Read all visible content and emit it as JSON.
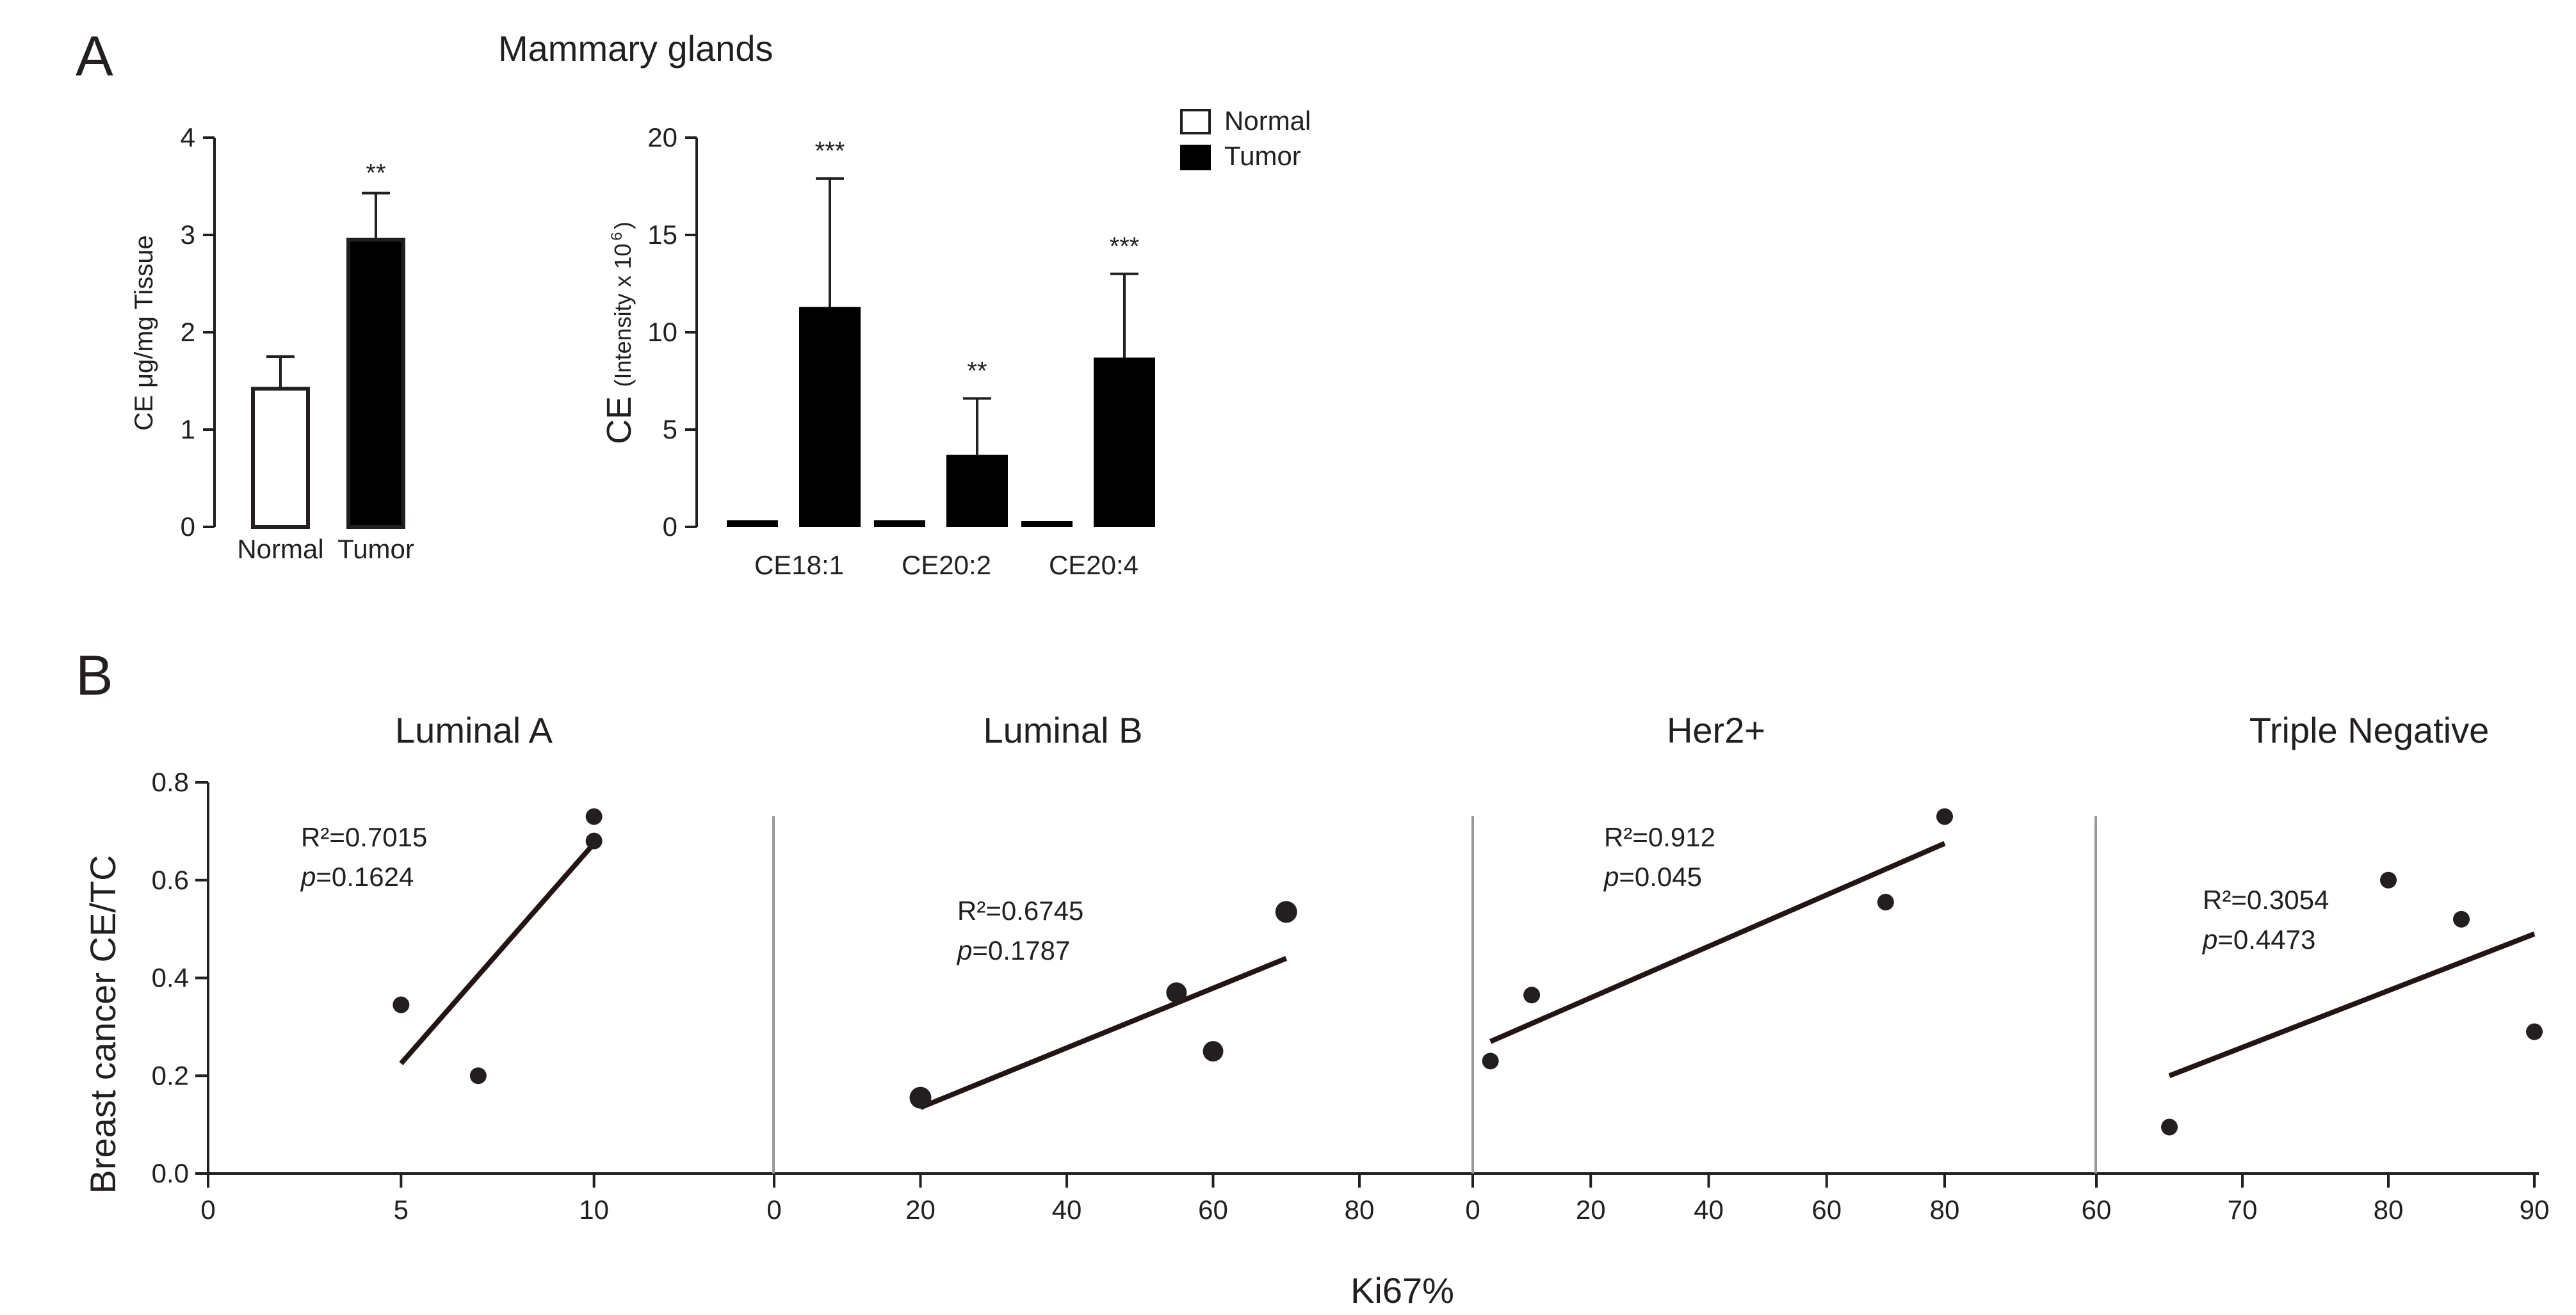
{
  "figure": {
    "panel_a_letter": "A",
    "panel_b_letter": "B",
    "panel_a_title": "Mammary glands",
    "panel_b_xlabel": "Ki67%",
    "panel_b_ylabel": "Breast cancer CE/TC"
  },
  "colors": {
    "ink": "#231f20",
    "tumor": "#000000",
    "normal": "#ffffff",
    "divider": "#999999"
  },
  "chart_data": [
    {
      "id": "a1",
      "type": "bar",
      "title": "",
      "xlabel": "",
      "ylabel": "CE μg/mg Tissue",
      "ylim": [
        0,
        4
      ],
      "yticks": [
        "0",
        "1",
        "2",
        "3",
        "4"
      ],
      "categories": [
        "Normal",
        "Tumor"
      ],
      "values": [
        1.42,
        2.95
      ],
      "errors": [
        0.33,
        0.48
      ],
      "significance": [
        "",
        "**"
      ],
      "grid": false
    },
    {
      "id": "a2",
      "type": "bar",
      "title": "",
      "xlabel": "",
      "ylabel_main": "CE",
      "ylabel_sub": "(Intensity x 10",
      "ylabel_sup": "6",
      "ylabel_close": ")",
      "ylim": [
        0,
        20
      ],
      "yticks": [
        "0",
        "5",
        "10",
        "15",
        "20"
      ],
      "categories": [
        "CE18:1",
        "CE20:2",
        "CE20:4"
      ],
      "series": [
        {
          "name": "Normal",
          "values": [
            0.15,
            0.15,
            0.1
          ],
          "errors": [
            0,
            0,
            0
          ]
        },
        {
          "name": "Tumor",
          "values": [
            11.3,
            3.7,
            8.7
          ],
          "errors": [
            6.6,
            2.9,
            4.3
          ]
        }
      ],
      "significance": [
        "***",
        "**",
        "***"
      ],
      "legend": {
        "placement": "top-right",
        "entries": [
          "Normal",
          "Tumor"
        ]
      },
      "grid": false
    },
    {
      "id": "b",
      "type": "scatter",
      "ylim": [
        0,
        0.8
      ],
      "yticks": [
        "0.0",
        "0.2",
        "0.4",
        "0.6",
        "0.8"
      ],
      "grid": false,
      "panels": [
        {
          "name": "Luminal A",
          "xlim": [
            0,
            15
          ],
          "xticks": [
            "0",
            "5",
            "10"
          ],
          "x": [
            5,
            7,
            10,
            10
          ],
          "y": [
            0.345,
            0.2,
            0.68,
            0.73
          ],
          "fit": {
            "x": [
              5,
              10
            ],
            "y": [
              0.225,
              0.675
            ]
          },
          "r2_label": "R²=0.7015",
          "p_letter": "p",
          "p_value": "=0.1624"
        },
        {
          "name": "Luminal B",
          "xlim": [
            0,
            80
          ],
          "xticks": [
            "0",
            "20",
            "40",
            "60",
            "80"
          ],
          "x": [
            20,
            55,
            60,
            70
          ],
          "y": [
            0.155,
            0.37,
            0.25,
            0.535
          ],
          "fit": {
            "x": [
              20,
              70
            ],
            "y": [
              0.135,
              0.44
            ]
          },
          "r2_label": "R²=0.6745",
          "p_letter": "p",
          "p_value": "=0.1787"
        },
        {
          "name": "Her2+",
          "xlim": [
            0,
            80
          ],
          "xticks": [
            "0",
            "20",
            "40",
            "60",
            "80"
          ],
          "x": [
            3,
            10,
            70,
            80
          ],
          "y": [
            0.23,
            0.365,
            0.555,
            0.73
          ],
          "fit": {
            "x": [
              3,
              80
            ],
            "y": [
              0.27,
              0.675
            ]
          },
          "r2_label": "R²=0.912",
          "p_letter": "p",
          "p_value": "=0.045"
        },
        {
          "name": "Triple Negative",
          "xlim": [
            60,
            90
          ],
          "xticks": [
            "60",
            "70",
            "80",
            "90"
          ],
          "x": [
            65,
            80,
            85,
            90
          ],
          "y": [
            0.095,
            0.6,
            0.52,
            0.29
          ],
          "fit": {
            "x": [
              65,
              90
            ],
            "y": [
              0.2,
              0.49
            ]
          },
          "r2_label": "R²=0.3054",
          "p_letter": "p",
          "p_value": "=0.4473"
        }
      ]
    }
  ]
}
